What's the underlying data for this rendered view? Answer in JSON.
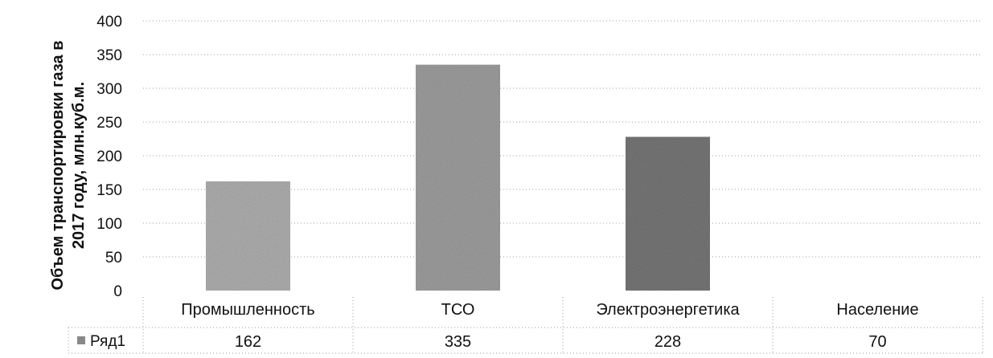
{
  "chart_data": {
    "type": "bar",
    "categories": [
      "Промышленность",
      "ТСО",
      "Электроэнергетика",
      "Население"
    ],
    "series": [
      {
        "name": "Ряд1",
        "values": [
          162,
          335,
          228,
          70
        ]
      }
    ],
    "ylabel_lines": [
      "Объем транспортировки газа в",
      "2017 году, млн.куб.м."
    ],
    "yticks": [
      0,
      50,
      100,
      150,
      200,
      250,
      300,
      350,
      400
    ],
    "ylim": [
      0,
      400
    ],
    "grid": true,
    "data_table": true,
    "bar_color": "#9a9a9a",
    "bar_colors": [
      "#b8b8b8",
      "#a6a6a6",
      "#7d7d7d",
      "#bdbdbd"
    ],
    "grid_color": "#9c9c9c",
    "visible_bars": [
      true,
      true,
      true,
      false
    ]
  }
}
